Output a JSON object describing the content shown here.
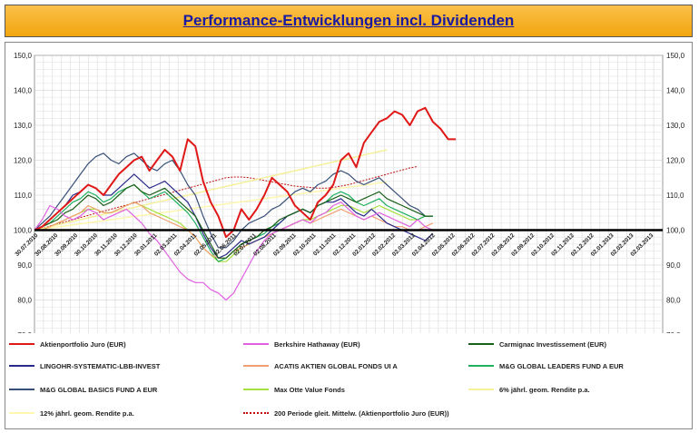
{
  "title": "Performance-Entwicklungen incl. Dividenden",
  "chart_data": {
    "type": "line",
    "title": "Performance-Entwicklungen incl. Dividenden",
    "ylim": [
      70,
      150
    ],
    "y_ticks": [
      "70,0",
      "80,0",
      "90,0",
      "100,0",
      "110,0",
      "120,0",
      "130,0",
      "140,0",
      "150,0"
    ],
    "baseline": 100,
    "x_ticks": [
      "30.07.2010",
      "30.08.2010",
      "30.09.2010",
      "30.10.2010",
      "30.11.2010",
      "30.12.2010",
      "30.01.2011",
      "02.03.2011",
      "02.04.2011",
      "02.05.2011",
      "02.06.2011",
      "02.07.2011",
      "02.08.2011",
      "02.09.2011",
      "02.10.2011",
      "02.11.2011",
      "02.12.2011",
      "02.01.2012",
      "02.02.2012",
      "02.03.2012",
      "02.04.2012",
      "02.05.2012",
      "02.06.2012",
      "02.07.2012",
      "02.08.2012",
      "02.09.2012",
      "02.10.2012",
      "02.11.2012",
      "02.12.2012",
      "02.01.2013",
      "02.02.2013",
      "02.03.2013"
    ],
    "series": [
      {
        "name": "Aktienportfolio Juro (EUR)",
        "color": "#e01818",
        "width": 2,
        "values": [
          100,
          101,
          103,
          105,
          107,
          109,
          111,
          113,
          112,
          110,
          113,
          116,
          118,
          120,
          121,
          117,
          120,
          123,
          121,
          117,
          126,
          124,
          114,
          108,
          104,
          98,
          100,
          106,
          103,
          106,
          110,
          115,
          113,
          111,
          107,
          105,
          103,
          108,
          110,
          113,
          120,
          122,
          118,
          125,
          128,
          131,
          132,
          134,
          133,
          130,
          134,
          135,
          131,
          129,
          126,
          126
        ]
      },
      {
        "name": "Berkshire Hathaway (EUR)",
        "color": "#e060e0",
        "width": 1.2,
        "values": [
          100,
          103,
          107,
          106,
          104,
          103,
          104,
          106,
          105,
          103,
          104,
          105,
          106,
          104,
          102,
          99,
          97,
          94,
          91,
          88,
          86,
          85,
          85,
          83,
          82,
          80,
          82,
          86,
          90,
          94,
          97,
          99,
          100,
          101,
          102,
          103,
          102,
          104,
          105,
          107,
          108,
          106,
          104,
          103,
          104,
          105,
          104,
          103,
          102,
          101,
          103,
          101,
          100
        ]
      },
      {
        "name": "Carmignac Investissement (EUR)",
        "color": "#186018",
        "width": 1.2,
        "values": [
          100,
          101,
          102,
          103,
          105,
          106,
          108,
          110,
          109,
          107,
          108,
          110,
          112,
          113,
          111,
          110,
          111,
          112,
          110,
          108,
          106,
          104,
          100,
          96,
          92,
          92,
          94,
          96,
          97,
          98,
          100,
          101,
          103,
          104,
          105,
          106,
          105,
          107,
          108,
          109,
          110,
          109,
          108,
          109,
          110,
          111,
          109,
          108,
          107,
          106,
          105,
          104,
          104
        ]
      },
      {
        "name": "LINGOHR-SYSTEMATIC-LBB-INVEST",
        "color": "#2a2a8a",
        "width": 1.2,
        "values": [
          100,
          101,
          103,
          105,
          107,
          110,
          111,
          113,
          112,
          110,
          110,
          112,
          114,
          116,
          114,
          112,
          113,
          114,
          112,
          110,
          108,
          104,
          99,
          95,
          92,
          93,
          95,
          97,
          96,
          97,
          98,
          100,
          102,
          104,
          105,
          106,
          105,
          107,
          108,
          108,
          109,
          107,
          105,
          104,
          106,
          104,
          102,
          101,
          100,
          99,
          98,
          97,
          99
        ]
      },
      {
        "name": "ACATIS AKTIEN GLOBAL FONDS UI A",
        "color": "#f0a070",
        "width": 1.2,
        "values": [
          100,
          100,
          101,
          102,
          103,
          104,
          105,
          107,
          106,
          105,
          105,
          106,
          107,
          108,
          107,
          105,
          104,
          103,
          102,
          101,
          100,
          98,
          95,
          93,
          92,
          92,
          94,
          95,
          96,
          97,
          98,
          99,
          100,
          101,
          102,
          103,
          102,
          103,
          104,
          105,
          106,
          105,
          104,
          103,
          104,
          103,
          102,
          101,
          101,
          100,
          100,
          101,
          102
        ]
      },
      {
        "name": "M&G GLOBAL LEADERS FUND A EUR",
        "color": "#20b060",
        "width": 1.2,
        "values": [
          100,
          101,
          102,
          104,
          106,
          108,
          109,
          111,
          110,
          108,
          109,
          111,
          112,
          113,
          111,
          109,
          110,
          111,
          109,
          107,
          105,
          102,
          98,
          94,
          91,
          92,
          94,
          96,
          97,
          98,
          99,
          101,
          102,
          104,
          105,
          106,
          105,
          107,
          108,
          110,
          111,
          110,
          108,
          107,
          108,
          109,
          107,
          106,
          105,
          104,
          103,
          104,
          104
        ]
      },
      {
        "name": "M&G GLOBAL BASICS FUND A EUR",
        "color": "#385078",
        "width": 1.2,
        "values": [
          100,
          102,
          104,
          107,
          110,
          113,
          116,
          119,
          121,
          122,
          120,
          119,
          121,
          122,
          120,
          118,
          117,
          119,
          120,
          117,
          113,
          110,
          104,
          99,
          95,
          95,
          97,
          100,
          102,
          103,
          104,
          106,
          107,
          109,
          111,
          112,
          111,
          113,
          114,
          116,
          117,
          116,
          114,
          113,
          114,
          115,
          113,
          111,
          109,
          107,
          106,
          104,
          104
        ]
      },
      {
        "name": "Max Otte Value Fonds",
        "color": "#a8e040",
        "width": 1.2,
        "values": [
          100,
          100,
          101,
          102,
          103,
          104,
          105,
          106,
          106,
          105,
          105,
          106,
          107,
          108,
          107,
          106,
          105,
          104,
          103,
          102,
          100,
          98,
          95,
          93,
          91,
          91,
          93,
          95,
          96,
          97,
          98,
          99,
          100,
          101,
          102,
          103,
          103,
          104,
          105,
          106,
          107,
          107,
          106,
          105,
          106,
          107,
          106,
          105,
          104,
          103,
          103,
          104,
          104
        ]
      },
      {
        "name": "6% jährl. geom. Rendite p.a.",
        "color": "#f6f09a",
        "width": 1.5,
        "values": [
          100,
          100.5,
          101,
          101.5,
          102,
          102.5,
          103,
          103.5,
          104,
          104.5,
          105,
          105.5,
          106,
          106.5,
          107,
          107.5,
          108,
          108.5,
          109,
          109.5,
          110,
          110.5,
          111,
          111.5,
          112,
          112.5,
          113,
          113.5,
          114,
          114.5,
          115,
          115.5,
          116,
          116.5,
          117,
          117.5,
          118,
          118.5,
          119,
          119.5,
          120,
          120.5,
          121,
          121.5,
          122,
          122.5,
          123
        ]
      },
      {
        "name": "12% jährl. geom. Rendite p.a.",
        "color": "#fff6b0",
        "width": 1.5,
        "values": [
          100,
          100.3,
          100.6,
          100.9,
          101.2,
          101.5,
          101.8,
          102.1,
          102.4,
          102.7,
          103,
          103.3,
          103.6,
          103.9,
          104.2,
          104.5,
          104.8,
          105.1,
          105.4,
          105.7,
          106,
          106.3,
          106.6,
          106.9,
          107.2,
          107.5,
          107.8,
          108.1,
          108.4,
          108.7,
          109,
          109.3,
          109.6,
          109.9,
          110.2,
          110.5,
          110.8,
          111.1,
          111.4,
          111.7,
          112,
          112.3,
          112.6,
          112.9,
          113.2,
          113.5,
          113.8
        ]
      },
      {
        "name": "200 Periode gleit. Mittelw. (Aktienportfolio Juro (EUR))",
        "color": "#c01010",
        "width": 1,
        "dashed": true,
        "values": [
          100,
          100.6,
          101.2,
          101.8,
          102.4,
          103,
          103.6,
          104.2,
          104.8,
          105.4,
          106,
          106.6,
          107.2,
          107.8,
          108.4,
          109,
          109.6,
          110.2,
          110.8,
          111.4,
          112,
          112.6,
          113.2,
          113.8,
          114.4,
          115,
          115.2,
          115.2,
          115,
          114.6,
          114.2,
          113.8,
          113.4,
          113,
          112.6,
          112.4,
          112.2,
          112,
          112,
          112.2,
          112.6,
          113,
          113.6,
          114.2,
          114.8,
          115.4,
          116,
          116.6,
          117.2,
          117.8,
          118.2
        ]
      }
    ]
  },
  "legend": [
    {
      "label": "Aktienportfolio Juro (EUR)",
      "color": "#e01818"
    },
    {
      "label": "Berkshire Hathaway (EUR)",
      "color": "#e060e0"
    },
    {
      "label": "Carmignac Investissement (EUR)",
      "color": "#186018"
    },
    {
      "label": "LINGOHR-SYSTEMATIC-LBB-INVEST",
      "color": "#2a2a8a"
    },
    {
      "label": "ACATIS AKTIEN GLOBAL FONDS UI A",
      "color": "#f0a070"
    },
    {
      "label": "M&G GLOBAL LEADERS FUND A EUR",
      "color": "#20b060"
    },
    {
      "label": "M&G GLOBAL BASICS FUND A EUR",
      "color": "#385078"
    },
    {
      "label": "Max Otte Value Fonds",
      "color": "#a8e040"
    },
    {
      "label": "6% jährl. geom. Rendite p.a.",
      "color": "#f6f09a"
    },
    {
      "label": "12% jährl. geom. Rendite p.a.",
      "color": "#fff6b0"
    },
    {
      "label": "200 Periode gleit. Mittelw. (Aktienportfolio Juro (EUR))",
      "color": "#c01010"
    }
  ]
}
